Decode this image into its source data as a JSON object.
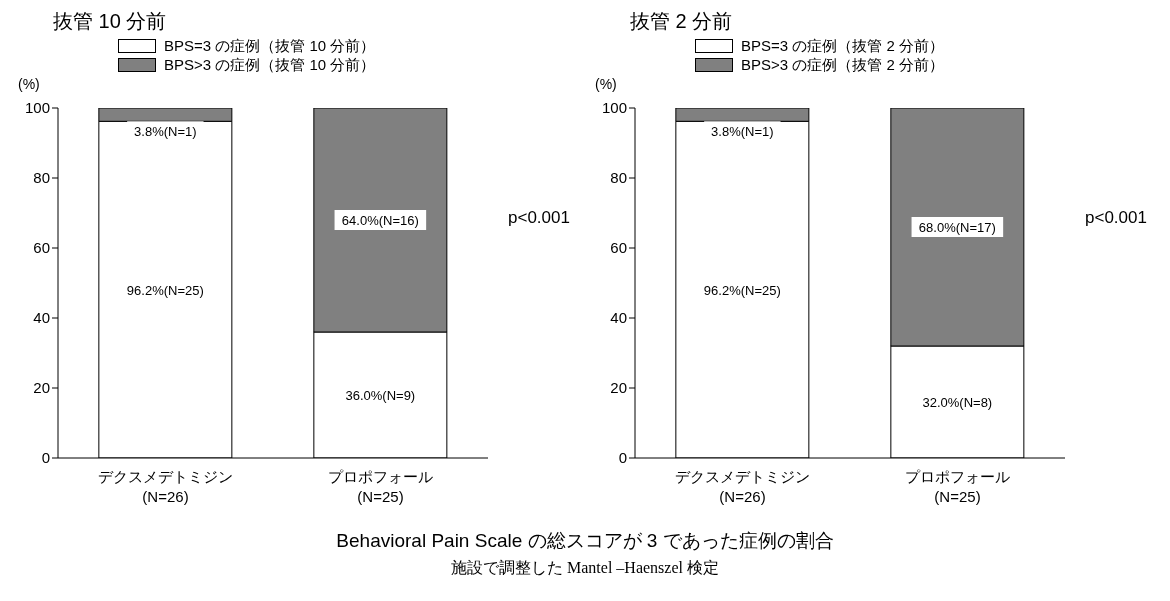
{
  "chart_data": [
    {
      "type": "bar",
      "title": "抜管 10 分前",
      "ylabel": "(%)",
      "categories": [
        "デクスメデトミジン\n(N=26)",
        "プロポフォール\n(N=25)"
      ],
      "stacked": true,
      "legend": "top",
      "ylim": [
        0,
        100
      ],
      "yticks": [
        0,
        20,
        40,
        60,
        80,
        100
      ],
      "annotations": [
        "p<0.001"
      ],
      "series": [
        {
          "name": "BPS=3 の症例（抜管 10 分前）",
          "color": "#ffffff",
          "values": [
            96.2,
            36.0
          ],
          "value_labels": [
            "96.2%(N=25)",
            "36.0%(N=9)"
          ]
        },
        {
          "name": "BPS>3 の症例（抜管 10 分前）",
          "color": "#808080",
          "values": [
            3.8,
            64.0
          ],
          "value_labels": [
            "3.8%(N=1)",
            "64.0%(N=16)"
          ]
        }
      ]
    },
    {
      "type": "bar",
      "title": "抜管 2 分前",
      "ylabel": "(%)",
      "categories": [
        "デクスメデトミジン\n(N=26)",
        "プロポフォール\n(N=25)"
      ],
      "stacked": true,
      "legend": "top",
      "ylim": [
        0,
        100
      ],
      "yticks": [
        0,
        20,
        40,
        60,
        80,
        100
      ],
      "annotations": [
        "p<0.001"
      ],
      "series": [
        {
          "name": "BPS=3 の症例（抜管 2 分前）",
          "color": "#ffffff",
          "values": [
            96.2,
            32.0
          ],
          "value_labels": [
            "96.2%(N=25)",
            "32.0%(N=8)"
          ]
        },
        {
          "name": "BPS>3 の症例（抜管 2 分前）",
          "color": "#808080",
          "values": [
            3.8,
            68.0
          ],
          "value_labels": [
            "3.8%(N=1)",
            "68.0%(N=17)"
          ]
        }
      ]
    },
    {
      "type": "other",
      "title": "Behavioral Pain Scale の総スコアが 3 であった症例の割合",
      "subtitle": "施設で調整した Mantel –Haenszel 検定"
    }
  ]
}
